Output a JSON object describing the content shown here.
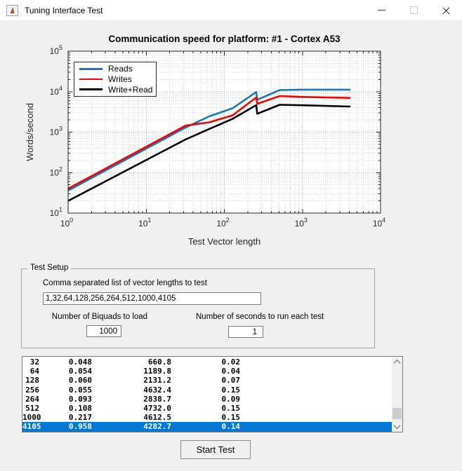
{
  "window": {
    "title": "Tuning Interface Test"
  },
  "chart_data": {
    "type": "line",
    "title": "Communication speed for platform:  #1 - Cortex A53",
    "xlabel": "Test Vector length",
    "ylabel": "Words/second",
    "xscale": "log",
    "yscale": "log",
    "xlim": [
      1,
      10000
    ],
    "ylim": [
      10,
      100000
    ],
    "x_tick_exponents": [
      0,
      1,
      2,
      3,
      4
    ],
    "y_tick_exponents": [
      1,
      2,
      3,
      4,
      5
    ],
    "grid": true,
    "minor_grid": true,
    "legend_position": "top-left",
    "x": [
      1,
      32,
      64,
      128,
      256,
      264,
      512,
      1000,
      4105
    ],
    "series": [
      {
        "name": "Reads",
        "color": "#1777bd",
        "values": [
          36,
          1300,
          2450,
          3900,
          9800,
          6300,
          11000,
          11200,
          11200
        ]
      },
      {
        "name": "Writes",
        "color": "#f40000",
        "values": [
          40,
          1450,
          1750,
          2600,
          7200,
          5000,
          7800,
          7400,
          7000
        ]
      },
      {
        "name": "Write+Read",
        "color": "#000000",
        "values": [
          20,
          660.8,
          1189.8,
          2131.2,
          4632.4,
          2838.7,
          4732.0,
          4612.5,
          4282.7
        ]
      }
    ],
    "major_grid_color": "#ababab",
    "minor_grid_color": "#d2d2d2",
    "axis_color": "#262626"
  },
  "test_setup": {
    "panel_title": "Test Setup",
    "vector_list_label": "Comma separated list of vector lengths to test",
    "vector_list_value": "1,32,64,128,256,264,512,1000,4105",
    "biquads_label": "Number of Biquads to load",
    "biquads_value": "1000",
    "seconds_label": "Number of seconds to run each test",
    "seconds_value": "1"
  },
  "results": {
    "rows": [
      [
        "32",
        "0.048",
        "660.8",
        "0.02"
      ],
      [
        "64",
        "0.054",
        "1189.8",
        "0.04"
      ],
      [
        "128",
        "0.060",
        "2131.2",
        "0.07"
      ],
      [
        "256",
        "0.055",
        "4632.4",
        "0.15"
      ],
      [
        "264",
        "0.093",
        "2838.7",
        "0.09"
      ],
      [
        "512",
        "0.108",
        "4732.0",
        "0.15"
      ],
      [
        "1000",
        "0.217",
        "4612.5",
        "0.15"
      ],
      [
        "4105",
        "0.958",
        "4282.7",
        "0.14"
      ]
    ],
    "selected_index": 7
  },
  "start_button_label": "Start Test",
  "colors": {
    "selection_bg": "#0078d7",
    "selection_fg": "#ffffff",
    "window_bg": "#f0f0f0",
    "titlebar_bg": "#ffffff"
  }
}
